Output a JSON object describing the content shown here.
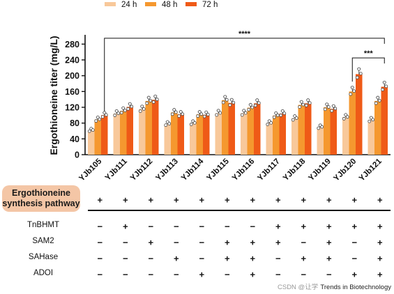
{
  "chart_data": {
    "type": "bar",
    "ylabel": "Ergothioneine titer (mg/L)",
    "ylim": [
      0,
      300
    ],
    "yticks": [
      0,
      40,
      80,
      120,
      160,
      200,
      240,
      280
    ],
    "categories": [
      "YJb105",
      "YJb111",
      "YJb112",
      "YJb113",
      "YJb114",
      "YJb115",
      "YJb116",
      "YJb117",
      "YJb118",
      "YJb119",
      "YJb120",
      "YJb121"
    ],
    "series": [
      {
        "name": "24 h",
        "color": "#f8c89a",
        "values": [
          62,
          104,
          115,
          78,
          80,
          105,
          105,
          80,
          92,
          70,
          95,
          88
        ]
      },
      {
        "name": "48 h",
        "color": "#f5982f",
        "values": [
          89,
          111,
          136,
          107,
          102,
          138,
          119,
          99,
          126,
          120,
          160,
          136
        ]
      },
      {
        "name": "72 h",
        "color": "#ef5a17",
        "values": [
          100,
          121,
          139,
          102,
          101,
          131,
          130,
          104,
          130,
          116,
          204,
          172
        ]
      }
    ],
    "significance": [
      {
        "from": "YJb105",
        "to": "YJb121",
        "label": "****",
        "y": 295
      },
      {
        "from": "YJb120",
        "to": "YJb121",
        "label": "***",
        "y": 245
      }
    ]
  },
  "table": {
    "pathway_label_line1": "Ergothioneine",
    "pathway_label_line2": "synthesis pathway",
    "pathway_row": [
      "+",
      "+",
      "+",
      "+",
      "+",
      "+",
      "+",
      "+",
      "+",
      "+",
      "+",
      "+"
    ],
    "rows": [
      {
        "label": "TnBHMT",
        "values": [
          "−",
          "+",
          "−",
          "−",
          "−",
          "−",
          "−",
          "+",
          "+",
          "+",
          "+",
          "+"
        ]
      },
      {
        "label": "SAM2",
        "values": [
          "−",
          "−",
          "+",
          "−",
          "−",
          "+",
          "+",
          "+",
          "−",
          "+",
          "−",
          "+"
        ]
      },
      {
        "label": "SAHase",
        "values": [
          "−",
          "−",
          "−",
          "+",
          "−",
          "+",
          "+",
          "−",
          "+",
          "+",
          "−",
          "+"
        ]
      },
      {
        "label": "ADOI",
        "values": [
          "−",
          "−",
          "−",
          "−",
          "+",
          "−",
          "+",
          "−",
          "−",
          "−",
          "+",
          "+"
        ]
      }
    ]
  },
  "footer": {
    "watermark": "CSDN @让学",
    "credit": "Trends in Biotechnology"
  }
}
